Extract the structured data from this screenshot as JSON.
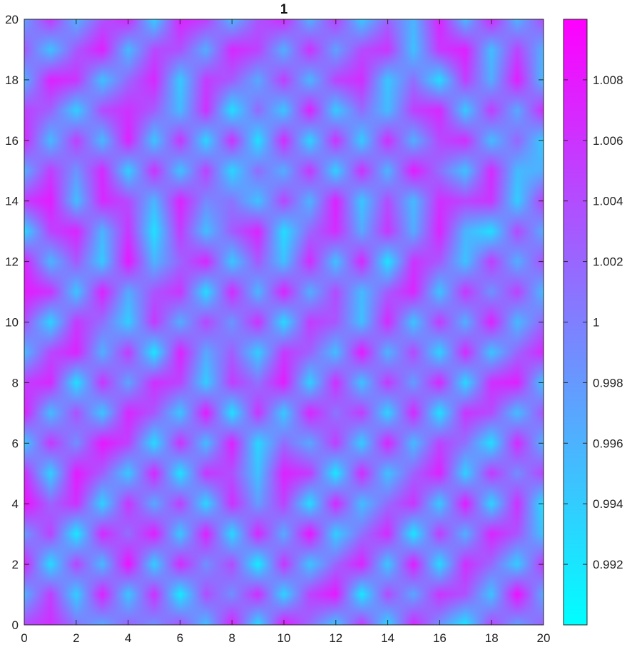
{
  "chart_data": {
    "type": "heatmap",
    "title": "1",
    "xlabel": "",
    "ylabel": "",
    "xlim": [
      0,
      20
    ],
    "ylim": [
      0,
      20
    ],
    "x_ticks": [
      "0",
      "2",
      "4",
      "6",
      "8",
      "10",
      "12",
      "14",
      "16",
      "18",
      "20"
    ],
    "y_ticks": [
      "0",
      "2",
      "4",
      "6",
      "8",
      "10",
      "12",
      "14",
      "16",
      "18",
      "20"
    ],
    "colormap": "cool",
    "colormap_stops": [
      "#00ffff",
      "#ff00ff"
    ],
    "clim": [
      0.99,
      1.01
    ],
    "colorbar": {
      "location": "right",
      "tick_values": [
        0.992,
        0.994,
        0.996,
        0.998,
        1.0,
        1.002,
        1.004,
        1.006,
        1.008
      ],
      "tick_labels": [
        "0.992",
        "0.994",
        "0.996",
        "0.998",
        "1",
        "1.002",
        "1.004",
        "1.006",
        "1.008"
      ]
    },
    "grid_size": [
      21,
      21
    ],
    "values": [
      [
        1.0042,
        1.0063,
        1.0008,
        0.9969,
        1.0022,
        0.9987,
        1.0035,
        0.9951,
        1.0074,
        0.9928,
        1.0081,
        1.0017,
        0.9946,
        1.0055,
        0.9932,
        1.0068,
        0.9987,
        0.9921,
        1.0045,
        0.9976,
        1.0024
      ],
      [
        0.9963,
        1.0051,
        0.9938,
        1.0073,
        0.9944,
        1.0062,
        0.9915,
        1.0039,
        0.9987,
        1.0064,
        0.9934,
        1.0047,
        1.0079,
        0.9918,
        1.0041,
        0.9969,
        1.0058,
        1.0036,
        0.9947,
        1.0088,
        0.9965
      ],
      [
        1.0071,
        0.9927,
        1.0046,
        0.9954,
        1.0086,
        0.9937,
        1.0067,
        0.9986,
        1.0041,
        0.9913,
        1.0058,
        0.9945,
        1.0021,
        1.0072,
        0.9943,
        1.0076,
        0.9928,
        1.0063,
        1.0019,
        0.9939,
        1.0057
      ],
      [
        0.9981,
        1.0048,
        0.9917,
        1.0067,
        1.0013,
        1.0076,
        0.9942,
        1.0074,
        0.9929,
        1.0069,
        0.9965,
        1.0084,
        0.9937,
        1.0012,
        1.0066,
        0.9919,
        1.0053,
        0.9962,
        1.0071,
        1.0034,
        0.9945
      ],
      [
        1.0088,
        1.0021,
        1.0063,
        0.9935,
        1.0058,
        0.9967,
        1.0051,
        0.9932,
        1.0063,
        0.9976,
        1.0049,
        0.9925,
        1.0068,
        0.9951,
        1.0017,
        1.0059,
        0.9941,
        1.0077,
        0.9933,
        1.0062,
        0.9922
      ],
      [
        1.0064,
        0.9936,
        1.0079,
        1.0027,
        0.9943,
        1.0069,
        0.9921,
        1.0057,
        1.0038,
        0.9947,
        1.0072,
        1.0054,
        0.9918,
        1.0066,
        0.9948,
        1.0024,
        1.0073,
        0.9936,
        1.0055,
        0.9988,
        1.0047
      ],
      [
        0.9941,
        1.0056,
        0.9987,
        1.0081,
        1.0049,
        0.9928,
        1.0061,
        0.9952,
        1.0074,
        0.9931,
        1.0016,
        0.9968,
        1.0052,
        0.9939,
        1.0071,
        0.9953,
        1.0047,
        1.0012,
        0.9925,
        1.0067,
        0.9958
      ],
      [
        1.0075,
        0.9952,
        1.0037,
        0.9945,
        1.0069,
        1.0033,
        0.9944,
        1.0078,
        0.9923,
        1.0059,
        0.9941,
        1.0071,
        1.0008,
        1.0053,
        0.9934,
        1.0068,
        0.9922,
        1.0058,
        1.0041,
        0.9951,
        1.0036
      ],
      [
        1.0052,
        1.0068,
        0.9924,
        1.0058,
        0.9971,
        1.0062,
        1.0047,
        0.9939,
        1.0052,
        1.0011,
        1.0077,
        0.9936,
        1.0063,
        0.9947,
        1.0055,
        0.9976,
        1.0069,
        0.9931,
        1.0062,
        1.0074,
        0.9943
      ],
      [
        0.9956,
        1.0043,
        1.0072,
        0.9962,
        1.0053,
        0.9919,
        1.0073,
        0.9968,
        1.0027,
        0.9939,
        1.0054,
        1.0025,
        0.9951,
        1.0079,
        0.9958,
        1.0043,
        0.9934,
        1.0066,
        0.9946,
        1.0021,
        1.0068
      ],
      [
        1.0038,
        0.9934,
        1.0055,
        1.0014,
        0.9938,
        1.0056,
        0.9963,
        1.0045,
        0.9981,
        1.0061,
        0.9929,
        1.0053,
        1.0032,
        0.9949,
        1.0067,
        0.9945,
        1.0054,
        0.9962,
        1.0073,
        0.9954,
        1.0021
      ],
      [
        1.0078,
        1.0061,
        0.9945,
        1.0073,
        0.9966,
        1.0034,
        1.0058,
        0.9927,
        1.0066,
        0.9956,
        1.0072,
        0.9962,
        1.0041,
        0.9953,
        1.0029,
        1.0071,
        0.9946,
        1.0057,
        0.9984,
        1.0049,
        0.9952
      ],
      [
        1.0073,
        0.9957,
        1.0032,
        0.9941,
        1.0081,
        0.9958,
        1.0021,
        1.0069,
        0.9943,
        1.0032,
        0.9948,
        1.0066,
        0.9948,
        1.0069,
        0.9921,
        1.0059,
        1.0031,
        0.9947,
        1.0052,
        0.9963,
        1.0038
      ],
      [
        0.9931,
        1.0047,
        1.0071,
        0.9958,
        1.0058,
        0.9923,
        1.0054,
        0.9951,
        1.0028,
        1.0071,
        0.9926,
        1.0019,
        1.0065,
        0.9967,
        1.0057,
        0.9965,
        1.0072,
        0.9959,
        0.9925,
        1.0043,
        0.9965
      ],
      [
        1.0054,
        1.0078,
        0.9951,
        1.0067,
        1.0042,
        0.9957,
        1.0073,
        0.9992,
        1.0009,
        0.9947,
        1.0046,
        0.9958,
        1.0074,
        0.9943,
        1.0041,
        0.9953,
        1.0062,
        1.0046,
        1.0058,
        0.9938,
        1.0052
      ],
      [
        0.9965,
        1.0052,
        0.9983,
        1.0068,
        0.9937,
        1.0061,
        0.9946,
        1.0049,
        0.9931,
        1.0016,
        0.9963,
        1.0057,
        0.9936,
        1.0062,
        0.9957,
        1.0078,
        1.0013,
        0.9948,
        1.0067,
        0.9954,
        0.9963
      ],
      [
        1.0067,
        0.9953,
        1.0051,
        0.9954,
        1.0073,
        0.9945,
        1.0058,
        0.9932,
        1.0061,
        0.9923,
        1.0065,
        0.9932,
        1.0061,
        0.9939,
        1.0064,
        0.9962,
        1.0042,
        1.0064,
        0.9952,
        1.0021,
        0.9939
      ],
      [
        1.0049,
        1.0024,
        0.9938,
        1.0041,
        1.0061,
        1.0028,
        0.9953,
        1.0062,
        0.9924,
        1.0018,
        0.9944,
        1.0073,
        0.9941,
        1.0017,
        0.9952,
        1.0049,
        1.0068,
        0.9942,
        1.0052,
        0.9967,
        1.0066
      ],
      [
        0.9962,
        1.0073,
        1.0058,
        0.9949,
        1.0019,
        1.0069,
        0.9941,
        1.0053,
        1.0029,
        0.9967,
        1.0051,
        0.9956,
        1.0047,
        1.0064,
        0.9944,
        1.0014,
        0.9927,
        1.0052,
        0.9963,
        1.0076,
        0.9952
      ],
      [
        1.0029,
        0.9948,
        1.0031,
        1.0075,
        0.9954,
        1.0043,
        1.0037,
        0.9964,
        1.0068,
        1.0048,
        0.9962,
        1.0061,
        0.9973,
        1.0041,
        1.0058,
        0.9948,
        1.0056,
        1.0074,
        0.9951,
        1.0047,
        0.9961
      ],
      [
        0.9976,
        1.0057,
        0.9962,
        1.0034,
        1.0067,
        0.9938,
        1.0072,
        1.0051,
        0.9958,
        1.0034,
        1.0066,
        0.9961,
        1.0052,
        0.9943,
        1.0023,
        0.9958,
        1.0073,
        0.9955,
        1.0069,
        0.9959,
        1.0041
      ]
    ]
  }
}
